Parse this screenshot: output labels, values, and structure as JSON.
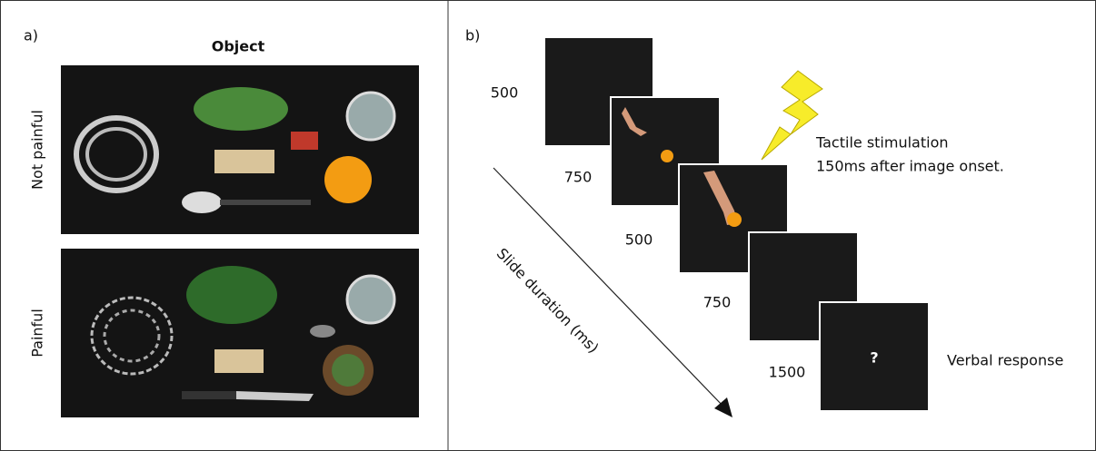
{
  "panel_a": {
    "label": "a)",
    "column_header": "Object",
    "rows": [
      {
        "label": "Not painful"
      },
      {
        "label": "Painful"
      }
    ]
  },
  "panel_b": {
    "label": "b)",
    "axis_label": "Slide duration (ms)",
    "slides": [
      {
        "duration": "500"
      },
      {
        "duration": "750"
      },
      {
        "duration": "500"
      },
      {
        "duration": "750"
      },
      {
        "duration": "1500",
        "content": "?"
      }
    ],
    "stimulation_note": [
      "Tactile stimulation",
      "150ms after image onset."
    ],
    "response_note": "Verbal response"
  }
}
